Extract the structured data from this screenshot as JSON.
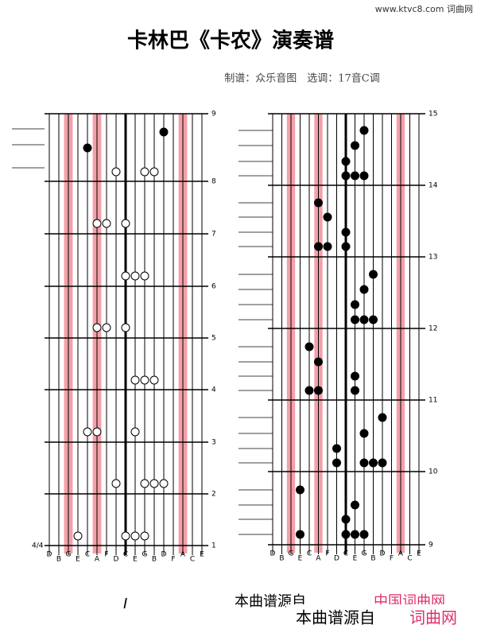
{
  "watermark": "www.ktvc8.com 词曲网",
  "header": {
    "title": "卡林巴《卡农》演奏谱",
    "subtitle": "制谱：众乐音图　选调：17音C调"
  },
  "keys": [
    "D",
    "B",
    "G",
    "E",
    "C",
    "A",
    "F",
    "D",
    "C",
    "E",
    "G",
    "B",
    "D",
    "F",
    "A",
    "C",
    "E"
  ],
  "left": {
    "time_signature": "4/4",
    "measures": [
      "1",
      "2",
      "3",
      "4",
      "5",
      "6",
      "7",
      "8",
      "9"
    ]
  },
  "right": {
    "measures": [
      "9",
      "10",
      "11",
      "12",
      "13",
      "14",
      "15"
    ]
  },
  "footer": {
    "page_mark": "I",
    "source_text": "本曲谱源自",
    "source_link": "中国词曲网",
    "banner_text": "本曲谱源自",
    "banner_link": "词曲网"
  }
}
